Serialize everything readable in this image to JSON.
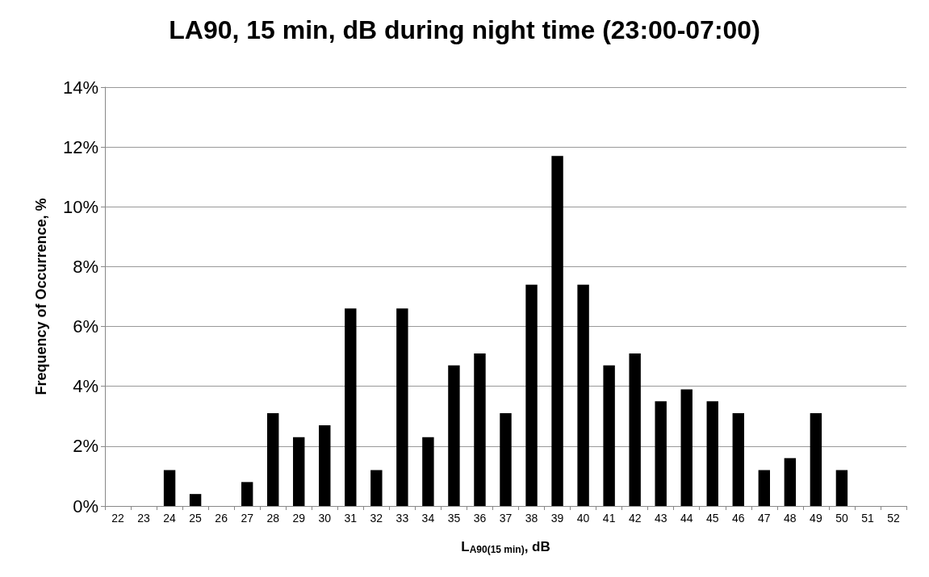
{
  "chart_data": {
    "type": "bar",
    "title": "LA90, 15 min, dB during night time (23:00-07:00)",
    "xlabel": "L$_{A90(15 min)}$, dB",
    "ylabel": "Frequency of Occurrence, %",
    "categories": [
      "22",
      "23",
      "24",
      "25",
      "26",
      "27",
      "28",
      "29",
      "30",
      "31",
      "32",
      "33",
      "34",
      "35",
      "36",
      "37",
      "38",
      "39",
      "40",
      "41",
      "42",
      "43",
      "44",
      "45",
      "46",
      "47",
      "48",
      "49",
      "50",
      "51",
      "52"
    ],
    "values": [
      0,
      0,
      1.2,
      0.4,
      0,
      0.8,
      3.1,
      2.3,
      2.7,
      6.6,
      1.2,
      6.6,
      2.3,
      4.7,
      5.1,
      3.1,
      7.4,
      11.7,
      7.4,
      4.7,
      5.1,
      3.5,
      3.9,
      3.5,
      3.1,
      1.2,
      1.6,
      3.1,
      1.2,
      0,
      0
    ],
    "color": "#000000",
    "ylim": [
      0,
      14
    ],
    "yticks": [
      {
        "value": 0,
        "label": "0%"
      },
      {
        "value": 2,
        "label": "2%"
      },
      {
        "value": 4,
        "label": "4%"
      },
      {
        "value": 6,
        "label": "6%"
      },
      {
        "value": 8,
        "label": "8%"
      },
      {
        "value": 10,
        "label": "10%"
      },
      {
        "value": 12,
        "label": "12%"
      },
      {
        "value": 14,
        "label": "14%"
      }
    ],
    "grid": "y"
  }
}
